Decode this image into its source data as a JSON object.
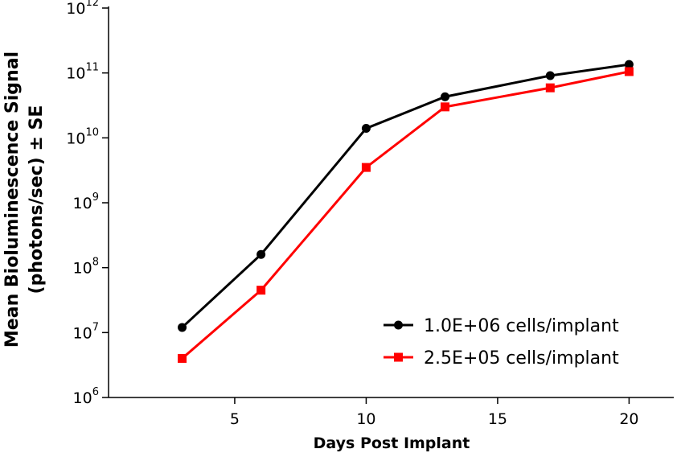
{
  "chart_data": {
    "type": "line",
    "xlabel": "Days Post Implant",
    "ylabel": [
      "Mean Bioluminescence Signal",
      "(photons/sec) ± SE"
    ],
    "x": [
      3,
      6,
      10,
      13,
      17,
      20
    ],
    "series": [
      {
        "name": "1.0E+06 cells/implant",
        "color": "#000000",
        "marker": "circle",
        "values": [
          12000000,
          160000000,
          14000000000,
          43000000000,
          91000000000,
          135000000000
        ]
      },
      {
        "name": "2.5E+05 cells/implant",
        "color": "#ff0000",
        "marker": "square",
        "values": [
          4000000,
          45000000,
          3500000000,
          30000000000,
          59000000000,
          105000000000
        ]
      }
    ],
    "xlim": [
      0.2,
      21.7
    ],
    "xticks": [
      5,
      10,
      15,
      20
    ],
    "ylog": true,
    "ylim": [
      1000000,
      1000000000000
    ],
    "yticks": [
      {
        "value": 1000000,
        "label": "10",
        "sup": "6"
      },
      {
        "value": 10000000,
        "label": "10",
        "sup": "7"
      },
      {
        "value": 100000000,
        "label": "10",
        "sup": "8"
      },
      {
        "value": 1000000000,
        "label": "10",
        "sup": "9"
      },
      {
        "value": 10000000000,
        "label": "10",
        "sup": "10"
      },
      {
        "value": 100000000000,
        "label": "10",
        "sup": "11"
      },
      {
        "value": 1000000000000,
        "label": "10",
        "sup": "12"
      }
    ],
    "legend": "lower right"
  }
}
